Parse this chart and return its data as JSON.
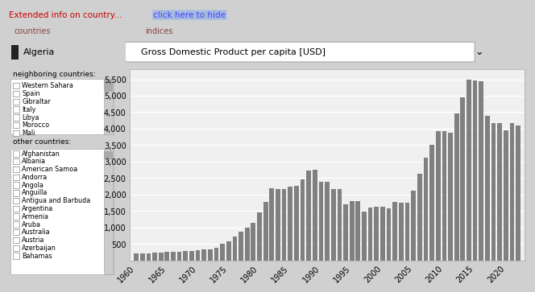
{
  "title": "Gross Domestic Product per capita [USD]",
  "bar_color": "#808080",
  "bg_color": "#ffffff",
  "panel_bg": "#e8e8e8",
  "grid_color": "#ffffff",
  "ylim": [
    0,
    5800
  ],
  "yticks": [
    0,
    500,
    1000,
    1500,
    2000,
    2500,
    3000,
    3500,
    4000,
    4500,
    5000,
    5500
  ],
  "ytick_labels": [
    "",
    "500",
    "1,000",
    "1,500",
    "2,000",
    "2,500",
    "3,000",
    "3,500",
    "4,000",
    "4,500",
    "5,000",
    "5,500"
  ],
  "years": [
    1960,
    1961,
    1962,
    1963,
    1964,
    1965,
    1966,
    1967,
    1968,
    1969,
    1970,
    1971,
    1972,
    1973,
    1974,
    1975,
    1976,
    1977,
    1978,
    1979,
    1980,
    1981,
    1982,
    1983,
    1984,
    1985,
    1986,
    1987,
    1988,
    1989,
    1990,
    1991,
    1992,
    1993,
    1994,
    1995,
    1996,
    1997,
    1998,
    1999,
    2000,
    2001,
    2002,
    2003,
    2004,
    2005,
    2006,
    2007,
    2008,
    2009,
    2010,
    2011,
    2012,
    2013,
    2014,
    2015,
    2016,
    2017,
    2018,
    2019,
    2020,
    2021,
    2022
  ],
  "values": [
    209,
    205,
    220,
    235,
    245,
    255,
    265,
    270,
    275,
    290,
    310,
    320,
    340,
    380,
    500,
    570,
    730,
    870,
    1000,
    1140,
    1460,
    1780,
    2190,
    2170,
    2160,
    2230,
    2260,
    2460,
    2730,
    2750,
    2390,
    2390,
    2160,
    2170,
    1700,
    1800,
    1790,
    1490,
    1600,
    1620,
    1620,
    1580,
    1770,
    1760,
    1760,
    2120,
    2640,
    3120,
    3500,
    3920,
    3920,
    3870,
    4460,
    4940,
    5500,
    5460,
    5450,
    4390,
    4160,
    4160,
    3940,
    4180,
    4100
  ],
  "xtick_positions": [
    1960,
    1965,
    1970,
    1975,
    1980,
    1985,
    1990,
    1995,
    2000,
    2005,
    2010,
    2015,
    2020
  ],
  "xtick_labels": [
    "1960",
    "1965",
    "1970",
    "1975",
    "1980",
    "1985",
    "1990",
    "1995",
    "2000",
    "2005",
    "2010",
    "2015",
    "2020"
  ],
  "left_panel_bg": "#d4d4d4",
  "header_bg": "#c8c8c8",
  "red_text": "#cc0000",
  "blue_link": "#4444ff",
  "header_text": "Extended info on country...",
  "link_text": "click here to hide",
  "countries_label": "countries",
  "indices_label": "indices",
  "selected_country": "Algeria",
  "neighboring_label": "neighboring countries:",
  "neighboring_countries": [
    "Western Sahara",
    "Spain",
    "Gibraltar",
    "Italy",
    "Libya",
    "Morocco",
    "Mali"
  ],
  "other_label": "other countries:",
  "other_countries": [
    "Afghanistan",
    "Albania",
    "American Samoa",
    "Andorra",
    "Angola",
    "Anguilla",
    "Antigua and Barbuda",
    "Argentina",
    "Armenia",
    "Aruba",
    "Australia",
    "Austria",
    "Azerbaijan",
    "Bahamas"
  ]
}
